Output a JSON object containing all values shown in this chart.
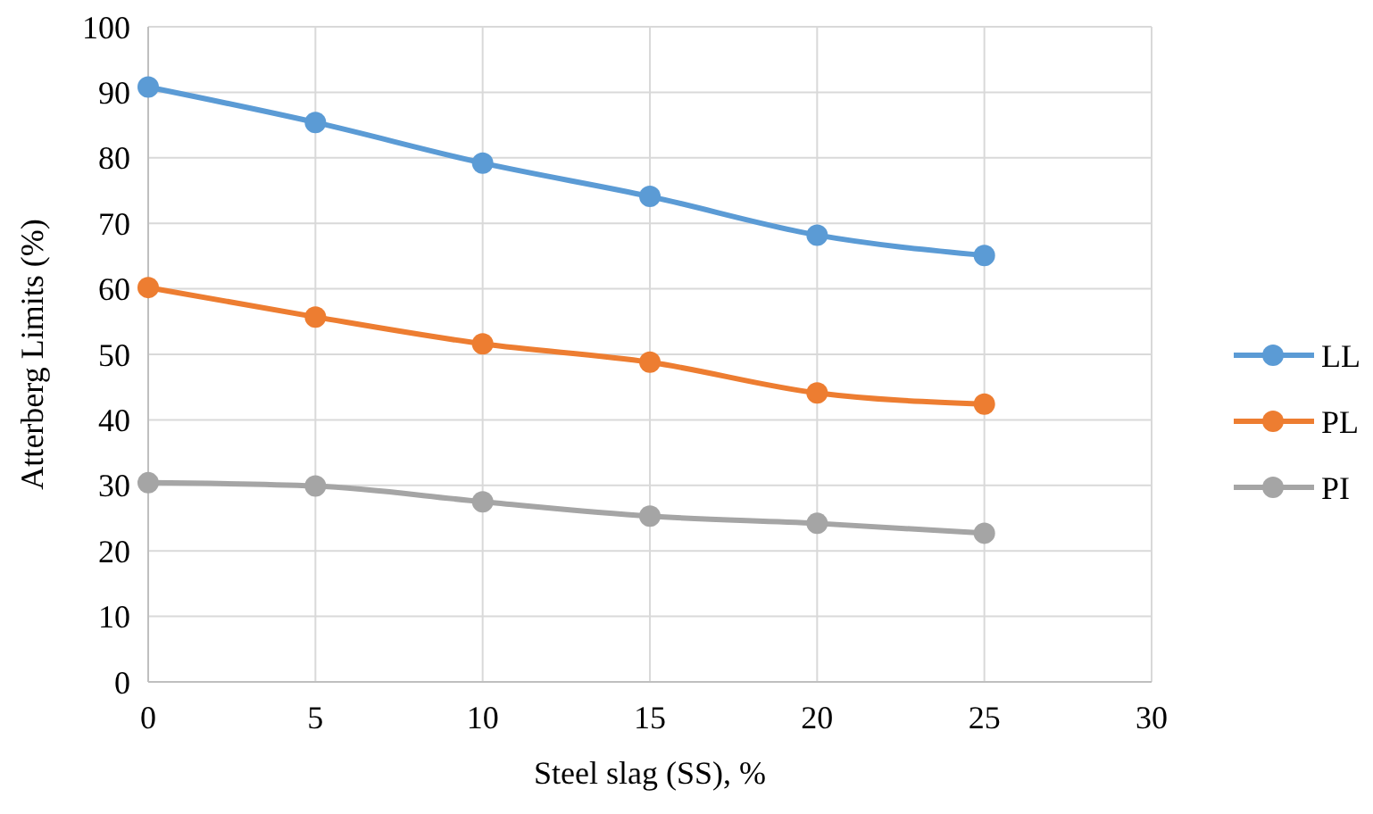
{
  "chart_data": {
    "type": "line",
    "xlabel": "Steel slag (SS), %",
    "ylabel": "Atterberg Limits (%)",
    "x": [
      0,
      5,
      10,
      15,
      20,
      25
    ],
    "series": [
      {
        "name": "LL",
        "color": "#5b9bd5",
        "values": [
          90.8,
          85.4,
          79.2,
          74.1,
          68.2,
          65.1
        ]
      },
      {
        "name": "PL",
        "color": "#ed7d31",
        "values": [
          60.2,
          55.7,
          51.6,
          48.8,
          44.1,
          42.4
        ]
      },
      {
        "name": "PI",
        "color": "#a5a5a5",
        "values": [
          30.4,
          29.9,
          27.5,
          25.3,
          24.2,
          22.7
        ]
      }
    ],
    "xlim": [
      0,
      30
    ],
    "xticks": [
      0,
      5,
      10,
      15,
      20,
      25,
      30
    ],
    "ylim": [
      0,
      100
    ],
    "yticks": [
      0,
      10,
      20,
      30,
      40,
      50,
      60,
      70,
      80,
      90,
      100
    ],
    "grid": true,
    "legend": "right",
    "marker": "circle",
    "line_style": "solid"
  }
}
